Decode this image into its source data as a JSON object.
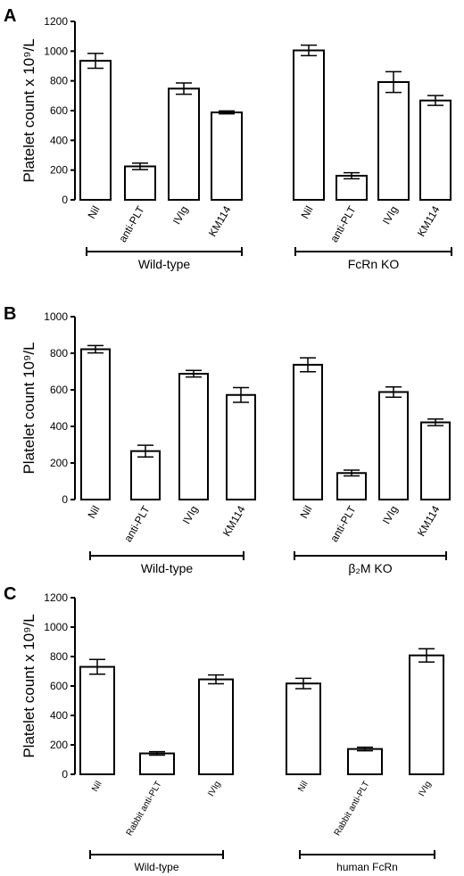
{
  "chart_data": [
    {
      "panel": "A",
      "type": "bar",
      "ylabel": "Platelet count x 10⁹/L",
      "ylim": [
        0,
        1200
      ],
      "yticks": [
        "0",
        "200",
        "400",
        "600",
        "800",
        "1000",
        "1200"
      ],
      "groups": [
        {
          "label": "Wild-type",
          "categories": [
            "Nil",
            "anti-PLT",
            "IVIg",
            "KM114"
          ],
          "values": [
            935,
            225,
            748,
            588
          ],
          "errors": [
            50,
            22,
            38,
            10
          ]
        },
        {
          "label": "FcRn KO",
          "categories": [
            "Nil",
            "anti-PLT",
            "IVIg",
            "KM114"
          ],
          "values": [
            1005,
            162,
            792,
            668
          ],
          "errors": [
            35,
            20,
            70,
            33
          ]
        }
      ]
    },
    {
      "panel": "B",
      "type": "bar",
      "ylabel": "Platelet count 10⁹/L",
      "ylim": [
        0,
        1000
      ],
      "yticks": [
        "0",
        "200",
        "400",
        "600",
        "800",
        "1000"
      ],
      "groups": [
        {
          "label": "Wild-type",
          "categories": [
            "Nil",
            "anti-PLT",
            "IVIg",
            "KM114"
          ],
          "values": [
            822,
            265,
            688,
            572
          ],
          "errors": [
            20,
            32,
            18,
            40
          ]
        },
        {
          "label": "β₂M KO",
          "categories": [
            "Nil",
            "anti-PLT",
            "IVIg",
            "KM114"
          ],
          "values": [
            737,
            145,
            588,
            422
          ],
          "errors": [
            38,
            16,
            28,
            18
          ]
        }
      ]
    },
    {
      "panel": "C",
      "type": "bar",
      "ylabel": "Platelet count x 10⁹/L",
      "ylim": [
        0,
        1200
      ],
      "yticks": [
        "0",
        "200",
        "400",
        "600",
        "800",
        "1000",
        "1200"
      ],
      "groups": [
        {
          "label": "Wild-type",
          "categories": [
            "Nil",
            "Rabbit anti-PLT",
            "IVIg"
          ],
          "values": [
            730,
            142,
            645
          ],
          "errors": [
            50,
            12,
            30
          ]
        },
        {
          "label": "human FcRn",
          "categories": [
            "Nil",
            "Rabbit anti-PLT",
            "IVIg"
          ],
          "values": [
            617,
            172,
            808
          ],
          "errors": [
            35,
            12,
            45
          ]
        }
      ]
    }
  ]
}
